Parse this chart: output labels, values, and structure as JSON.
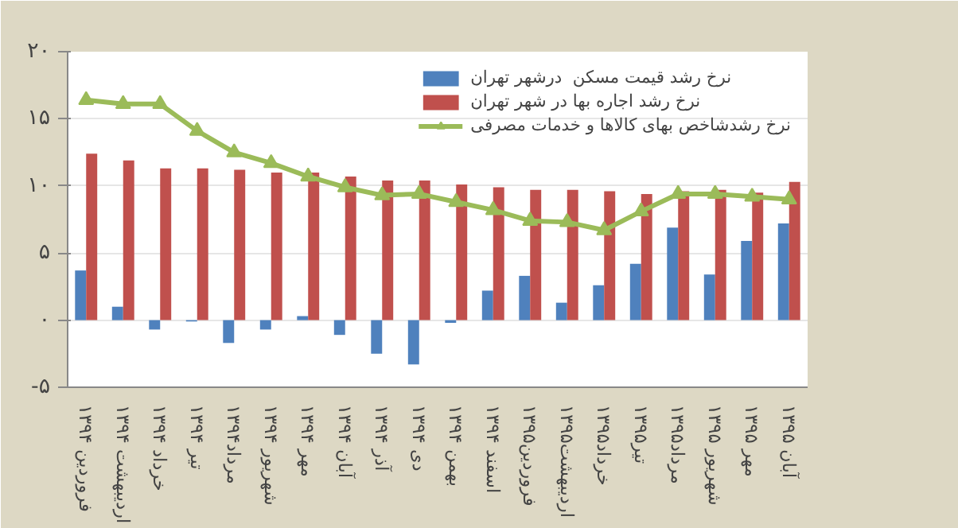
{
  "chart_data": {
    "type": "bar",
    "categories": [
      "فروردین ۱۳۹۴",
      "اردیبهشت ۱۳۹۴",
      "خرداد ۱۳۹۴",
      "تیر ۱۳۹۴",
      "مرداد۱۳۹۴",
      "شهریور ۱۳۹۴",
      "مهر ۱۳۹۴",
      "آبان ۱۳۹۴",
      "آذر ۱۳۹۴",
      "دی ۱۳۹۴",
      "بهمن ۱۳۹۴",
      "اسفند ۱۳۹۴",
      "فروردین۱۳۹۵",
      "اردیبهشت۱۳۹۵",
      "خرداد۱۳۹۵",
      "تیر۱۳۹۵",
      "مرداد۱۳۹۵",
      "شهریور ۱۳۹۵",
      "مهر ۱۳۹۵",
      "آبان ۱۳۹۵"
    ],
    "series": [
      {
        "name": "نرخ رشد قیمت مسکن  درشهر تهران",
        "color": "#4f81bd",
        "values": [
          3.7,
          1.0,
          -0.7,
          -0.1,
          -1.7,
          -0.7,
          0.3,
          -1.1,
          -2.5,
          -3.3,
          -0.2,
          2.2,
          3.3,
          1.3,
          2.6,
          4.2,
          6.9,
          3.4,
          5.9,
          7.2
        ]
      },
      {
        "name": "نرخ رشد اجاره بها در شهر تهران",
        "color": "#c0504d",
        "values": [
          12.4,
          11.9,
          11.3,
          11.3,
          11.2,
          11.0,
          11.0,
          10.7,
          10.4,
          10.4,
          10.1,
          9.9,
          9.7,
          9.7,
          9.6,
          9.4,
          9.6,
          9.7,
          9.5,
          10.3
        ]
      },
      {
        "name": "نرخ رشدشاخص بهای کالاها و خدمات مصرفی",
        "color": "#9bbb59",
        "type": "line",
        "marker": "triangle",
        "values": [
          16.4,
          16.1,
          16.1,
          14.1,
          12.5,
          11.7,
          10.7,
          9.9,
          9.3,
          9.4,
          8.8,
          8.2,
          7.4,
          7.3,
          6.7,
          8.1,
          9.4,
          9.4,
          9.2,
          9.0
        ]
      }
    ],
    "ylim": [
      -5,
      20
    ],
    "yticks": [
      {
        "value": -5,
        "label": "-۵"
      },
      {
        "value": 0,
        "label": "۰"
      },
      {
        "value": 5,
        "label": "۵"
      },
      {
        "value": 10,
        "label": "۱۰"
      },
      {
        "value": 15,
        "label": "۱۵"
      },
      {
        "value": 20,
        "label": "۲۰"
      }
    ],
    "grid": "y",
    "legend": "top right"
  }
}
